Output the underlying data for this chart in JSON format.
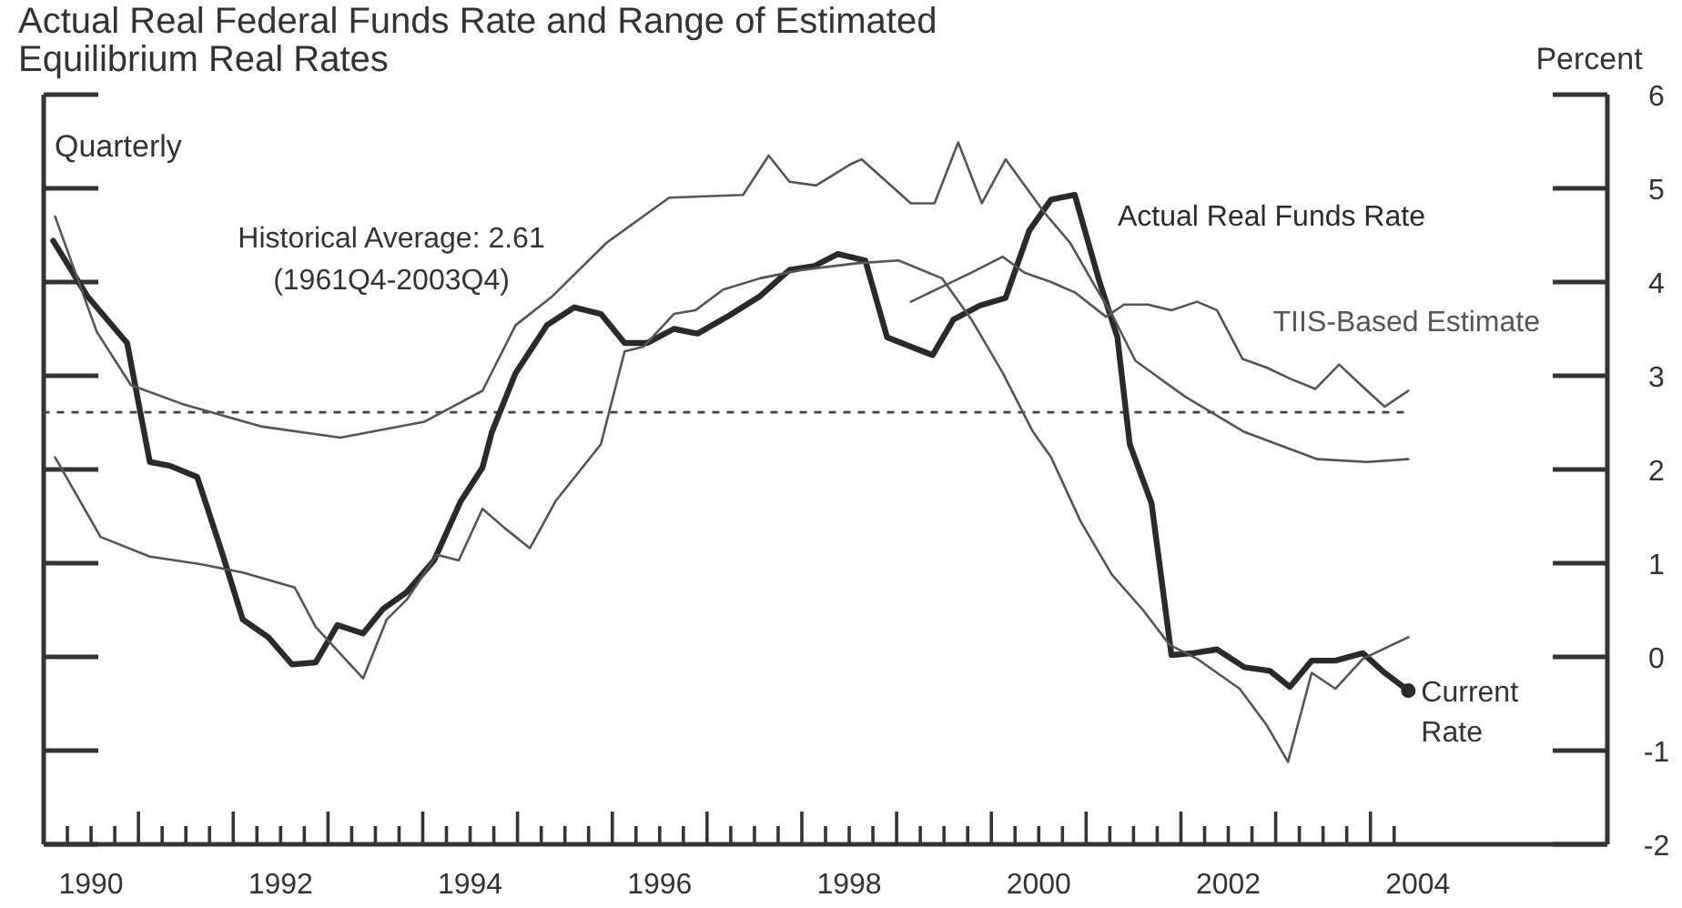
{
  "chart_data": {
    "type": "line",
    "title": "Actual Real Federal Funds Rate and Range of Estimated Equilibrium Real Rates",
    "subtitle": "Quarterly",
    "ylabel": "Percent",
    "xlim": [
      1990,
      2006.5
    ],
    "xticks": [
      {
        "value": 1990.5,
        "label": "1990"
      },
      {
        "value": 1992.5,
        "label": "1992"
      },
      {
        "value": 1994.5,
        "label": "1994"
      },
      {
        "value": 1996.5,
        "label": "1996"
      },
      {
        "value": 1998.5,
        "label": "1998"
      },
      {
        "value": 2000.5,
        "label": "2000"
      },
      {
        "value": 2002.5,
        "label": "2002"
      },
      {
        "value": 2004.5,
        "label": "2004"
      }
    ],
    "ylim": [
      -2,
      6
    ],
    "yticks": [
      -2,
      -1,
      0,
      1,
      2,
      3,
      4,
      5,
      6
    ],
    "line_style": "solid",
    "marker": "none",
    "grid": false,
    "legend": false,
    "series": [
      {
        "name": "Actual Real Funds Rate",
        "color": "#2a2a2a",
        "x": [
          1990.1,
          1990.46,
          1990.88,
          1991.12,
          1991.33,
          1991.62,
          1991.88,
          1992.1,
          1992.37,
          1992.62,
          1992.87,
          1993.1,
          1993.37,
          1993.58,
          1993.83,
          1994.12,
          1994.4,
          1994.63,
          1994.73,
          1994.98,
          1995.31,
          1995.6,
          1995.88,
          1996.13,
          1996.37,
          1996.65,
          1996.9,
          1997.23,
          1997.56,
          1997.87,
          1998.13,
          1998.38,
          1998.67,
          1998.9,
          1999.15,
          1999.38,
          1999.6,
          1999.88,
          2000.15,
          2000.4,
          2000.63,
          2000.88,
          2001.13,
          2001.33,
          2001.46,
          2001.69,
          2001.9,
          2002.13,
          2002.38,
          2002.67,
          2002.94,
          2003.15,
          2003.38,
          2003.63,
          2003.92,
          2004.15,
          2004.4
        ],
        "values": [
          4.44,
          3.85,
          3.35,
          2.08,
          2.04,
          1.92,
          1.12,
          0.4,
          0.21,
          -0.08,
          -0.06,
          0.34,
          0.25,
          0.51,
          0.69,
          1.03,
          1.66,
          2.02,
          2.4,
          3.03,
          3.54,
          3.73,
          3.66,
          3.35,
          3.35,
          3.5,
          3.45,
          3.64,
          3.85,
          4.13,
          4.17,
          4.3,
          4.23,
          3.41,
          3.31,
          3.22,
          3.6,
          3.75,
          3.83,
          4.55,
          4.88,
          4.93,
          4.04,
          3.41,
          2.27,
          1.64,
          0.02,
          0.04,
          0.08,
          -0.11,
          -0.15,
          -0.32,
          -0.04,
          -0.04,
          0.04,
          -0.17,
          -0.36
        ]
      },
      {
        "name": "TIIS-Based Estimate",
        "color": "#555555",
        "x": [
          1999.15,
          1999.48,
          1999.79,
          2000.12,
          2000.35,
          2000.63,
          2000.88,
          2001.21,
          2001.4,
          2001.65,
          2001.9,
          2002.17,
          2002.38,
          2002.65,
          2002.9,
          2003.15,
          2003.42,
          2003.67,
          2003.9,
          2004.15,
          2004.4
        ],
        "values": [
          3.79,
          3.95,
          4.1,
          4.27,
          4.1,
          4.0,
          3.89,
          3.63,
          3.76,
          3.76,
          3.7,
          3.79,
          3.7,
          3.18,
          3.09,
          2.97,
          2.86,
          3.12,
          2.9,
          2.67,
          2.84
        ]
      },
      {
        "color": "#555555",
        "x": [
          1990.12,
          1990.56,
          1990.92,
          1991.46,
          1992.29,
          1993.13,
          1994.02,
          1994.63,
          1994.98,
          1995.37,
          1995.94,
          1996.6,
          1997.38,
          1997.65,
          1997.87,
          1998.15,
          1998.52,
          1998.63,
          1999.15,
          1999.4,
          1999.65,
          1999.9,
          2000.15,
          2000.56,
          2000.83,
          2001.08,
          2001.27,
          2001.52,
          2002.04,
          2002.67,
          2003.44,
          2003.96,
          2004.4
        ],
        "values": [
          4.7,
          3.47,
          2.9,
          2.7,
          2.46,
          2.34,
          2.51,
          2.84,
          3.54,
          3.85,
          4.42,
          4.9,
          4.93,
          5.35,
          5.07,
          5.03,
          5.26,
          5.31,
          4.84,
          4.84,
          5.49,
          4.84,
          5.31,
          4.74,
          4.42,
          3.98,
          3.66,
          3.16,
          2.78,
          2.4,
          2.11,
          2.08,
          2.11
        ]
      },
      {
        "color": "#555555",
        "x": [
          1990.12,
          1990.6,
          1991.12,
          1991.65,
          1992.1,
          1992.65,
          1992.87,
          1993.37,
          1993.62,
          1993.83,
          1994.15,
          1994.38,
          1994.63,
          1994.87,
          1995.13,
          1995.4,
          1995.88,
          1996.13,
          1996.33,
          1996.65,
          1996.88,
          1997.17,
          1997.56,
          1998.0,
          1998.58,
          1999.02,
          1999.48,
          1999.79,
          2000.12,
          2000.44,
          2000.63,
          2000.94,
          2001.27,
          2001.6,
          2001.88,
          2002.17,
          2002.62,
          2002.9,
          2003.13,
          2003.38,
          2003.63,
          2003.92,
          2004.4
        ],
        "values": [
          2.13,
          1.28,
          1.07,
          0.99,
          0.9,
          0.74,
          0.32,
          -0.23,
          0.4,
          0.61,
          1.09,
          1.03,
          1.58,
          1.37,
          1.16,
          1.66,
          2.27,
          3.26,
          3.31,
          3.66,
          3.7,
          3.92,
          4.04,
          4.13,
          4.2,
          4.23,
          4.04,
          3.6,
          3.03,
          2.4,
          2.13,
          1.45,
          0.88,
          0.5,
          0.13,
          -0.02,
          -0.34,
          -0.72,
          -1.12,
          -0.17,
          -0.34,
          -0.02,
          0.21
        ]
      }
    ],
    "ref_lines": [
      {
        "axis": "y",
        "value": 2.61,
        "line_style": "dashed",
        "color": "#444444"
      }
    ],
    "annotations": [
      "Historical Average: 2.61 (1961Q4-2003Q4)",
      {
        "text": "Current Rate",
        "x": 2004.4,
        "y": -0.36
      }
    ]
  }
}
